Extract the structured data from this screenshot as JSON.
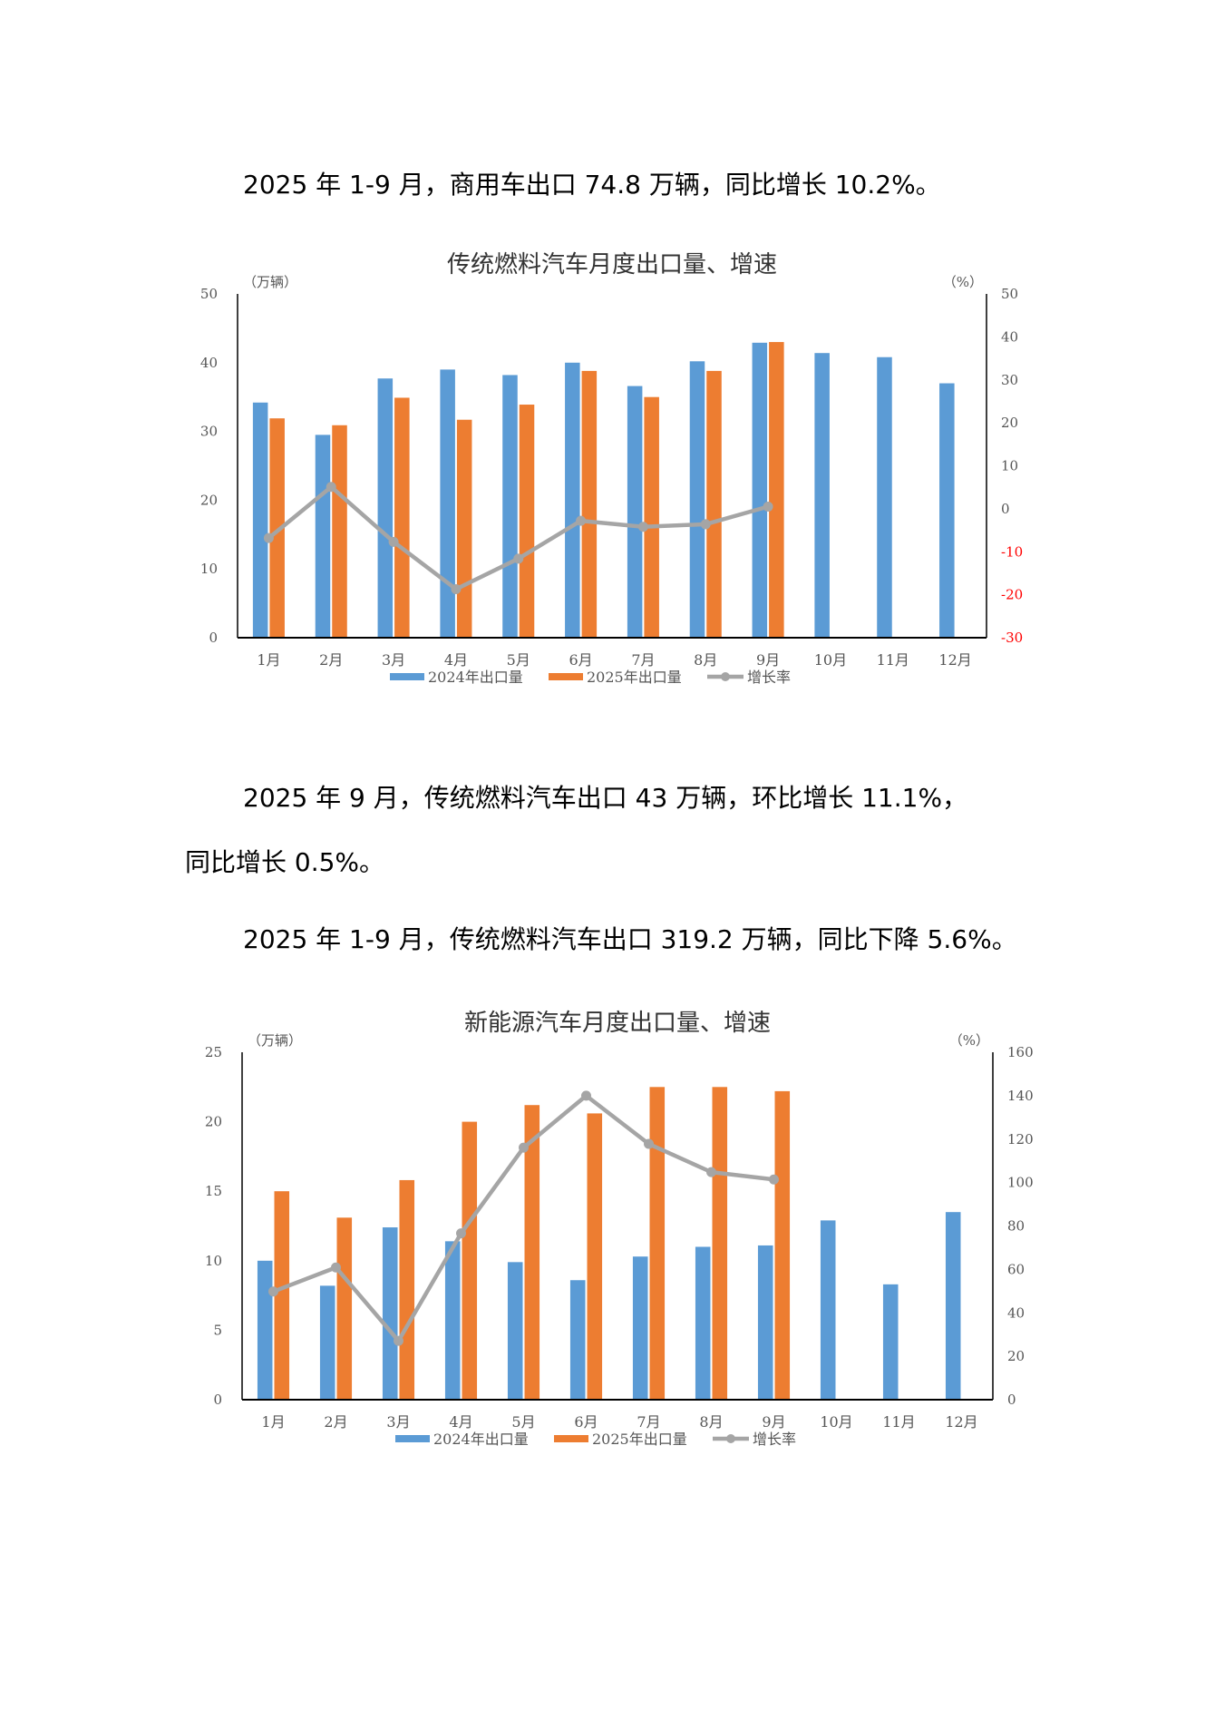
{
  "paragraphs": [
    "2025 年 1-9 月，商用车出口 74.8 万辆，同比增长 10.2%。",
    "2025 年 9 月，传统燃料汽车出口 43 万辆，环比增长 11.1%，",
    "同比增长 0.5%。",
    "2025 年 1-9 月，传统燃料汽车出口 319.2 万辆，同比下降 5.6%。"
  ],
  "colors": {
    "series_2024": "#5B9BD5",
    "series_2025": "#ED7D31",
    "growth": "#A5A5A5",
    "negative_tick": "#FF0000"
  },
  "chart_data": [
    {
      "type": "bar",
      "title": "传统燃料汽车月度出口量、增速",
      "ylabel": "（万辆）",
      "y2label": "（%）",
      "ylim": [
        0,
        50
      ],
      "yticks": [
        0,
        10,
        20,
        30,
        40,
        50
      ],
      "y2lim": [
        -30,
        50
      ],
      "y2ticks": [
        -30,
        -20,
        -10,
        0,
        10,
        20,
        30,
        40,
        50
      ],
      "categories": [
        "1月",
        "2月",
        "3月",
        "4月",
        "5月",
        "6月",
        "7月",
        "8月",
        "9月",
        "10月",
        "11月",
        "12月"
      ],
      "series": [
        {
          "name": "2024年出口量",
          "type": "bar",
          "axis": "left",
          "values": [
            34.2,
            29.5,
            37.7,
            39.0,
            38.2,
            40.0,
            36.6,
            40.2,
            42.9,
            41.4,
            40.8,
            37.0
          ]
        },
        {
          "name": "2025年出口量",
          "type": "bar",
          "axis": "left",
          "values": [
            31.9,
            30.9,
            34.9,
            31.7,
            33.9,
            38.8,
            35.0,
            38.8,
            43.0,
            null,
            null,
            null
          ]
        },
        {
          "name": "增长率",
          "type": "line",
          "axis": "right",
          "values": [
            -6.8,
            5.1,
            -7.7,
            -18.7,
            -11.6,
            -2.8,
            -4.2,
            -3.6,
            0.5,
            null,
            null,
            null
          ]
        }
      ],
      "legend": "bottom",
      "grid": false
    },
    {
      "type": "bar",
      "title": "新能源汽车月度出口量、增速",
      "ylabel": "（万辆）",
      "y2label": "（%）",
      "ylim": [
        0,
        25
      ],
      "yticks": [
        0,
        5,
        10,
        15,
        20,
        25
      ],
      "y2lim": [
        0,
        160
      ],
      "y2ticks": [
        0,
        20,
        40,
        60,
        80,
        100,
        120,
        140,
        160
      ],
      "categories": [
        "1月",
        "2月",
        "3月",
        "4月",
        "5月",
        "6月",
        "7月",
        "8月",
        "9月",
        "10月",
        "11月",
        "12月"
      ],
      "series": [
        {
          "name": "2024年出口量",
          "type": "bar",
          "axis": "left",
          "values": [
            10.0,
            8.2,
            12.4,
            11.4,
            9.9,
            8.6,
            10.3,
            11.0,
            11.1,
            12.9,
            8.3,
            13.5
          ]
        },
        {
          "name": "2025年出口量",
          "type": "bar",
          "axis": "left",
          "values": [
            15.0,
            13.1,
            15.8,
            20.0,
            21.2,
            20.6,
            22.5,
            22.5,
            22.2,
            null,
            null,
            null
          ]
        },
        {
          "name": "增长率",
          "type": "line",
          "axis": "right",
          "values": [
            49.8,
            60.9,
            27.1,
            76.6,
            116.1,
            140.0,
            117.8,
            104.8,
            101.4,
            null,
            null,
            null
          ]
        }
      ],
      "legend": "bottom",
      "grid": false
    }
  ]
}
